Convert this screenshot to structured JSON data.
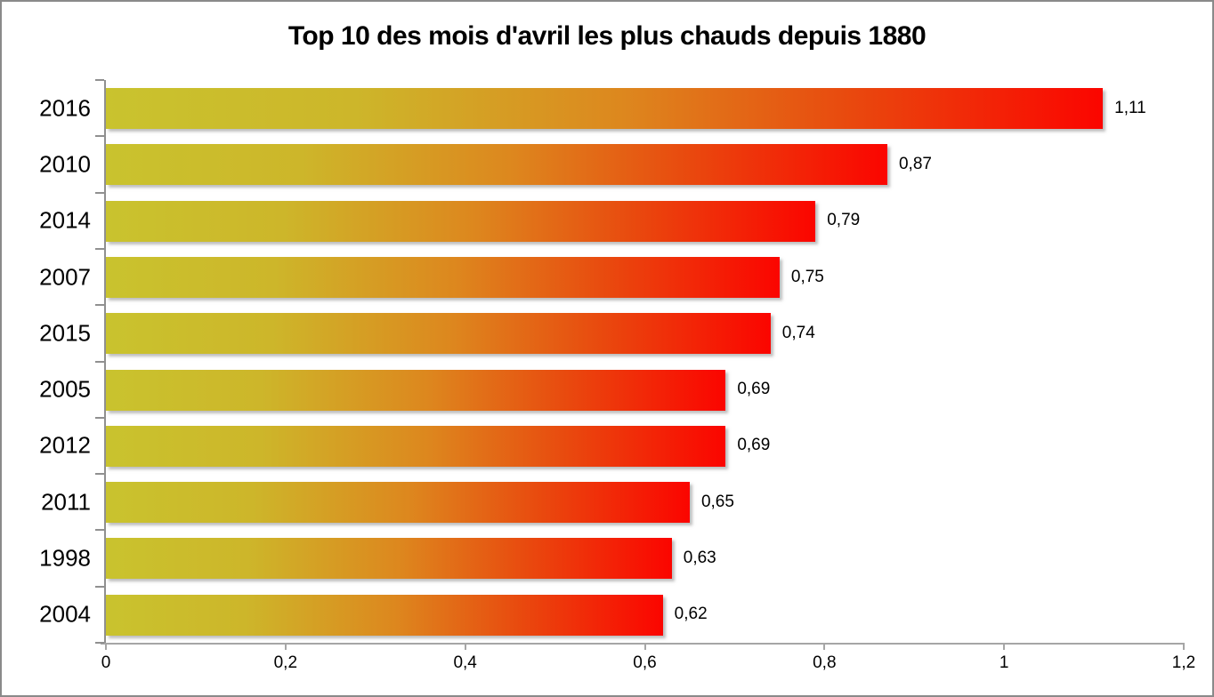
{
  "chart_data": {
    "type": "bar",
    "orientation": "horizontal",
    "title": "Top 10 des mois d'avril les plus chauds depuis 1880",
    "categories": [
      "2016",
      "2010",
      "2014",
      "2007",
      "2015",
      "2005",
      "2012",
      "2011",
      "1998",
      "2004"
    ],
    "values": [
      1.11,
      0.87,
      0.79,
      0.75,
      0.74,
      0.69,
      0.69,
      0.65,
      0.63,
      0.62
    ],
    "value_labels": [
      "1,11",
      "0,87",
      "0,79",
      "0,75",
      "0,74",
      "0,69",
      "0,69",
      "0,65",
      "0,63",
      "0,62"
    ],
    "xlabel": "",
    "ylabel": "",
    "xlim": [
      0,
      1.2
    ],
    "x_ticks": [
      0,
      0.2,
      0.4,
      0.6,
      0.8,
      1,
      1.2
    ],
    "x_tick_labels": [
      "0",
      "0,2",
      "0,4",
      "0,6",
      "0,8",
      "1",
      "1,2"
    ],
    "grid": false,
    "legend": null,
    "colors": {
      "bar_gradient_stops": [
        "#c9c32e",
        "#cdb62a",
        "#dd871e",
        "#e9480e",
        "#fb0500"
      ],
      "bar_gradient_positions": [
        "0%",
        "25%",
        "52%",
        "75%",
        "100%"
      ],
      "axis_line": "#a6a6a6",
      "y_axis_line": "#909090",
      "title_color": "#000000",
      "label_color": "#000000",
      "background": "#ffffff",
      "frame_border": "#8a8a8a"
    }
  }
}
